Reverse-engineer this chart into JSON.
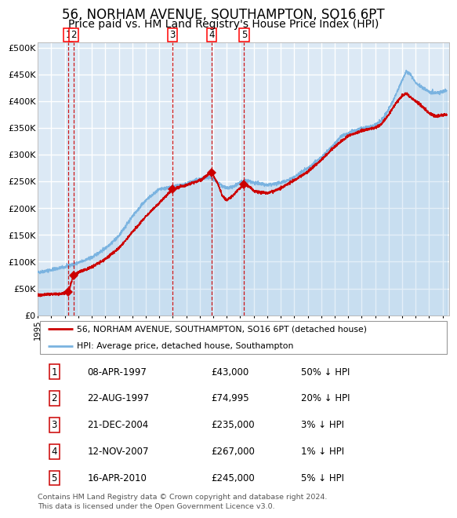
{
  "title": "56, NORHAM AVENUE, SOUTHAMPTON, SO16 6PT",
  "subtitle": "Price paid vs. HM Land Registry's House Price Index (HPI)",
  "title_fontsize": 12,
  "subtitle_fontsize": 10,
  "background_color": "#dce9f5",
  "plot_bg_color": "#dce9f5",
  "hpi_color": "#7ab3e0",
  "price_color": "#cc0000",
  "marker_color": "#cc0000",
  "vline_color": "#cc0000",
  "grid_color": "#ffffff",
  "transactions": [
    {
      "label": "1",
      "date_x": 1997.27,
      "price": 43000,
      "date_str": "08-APR-1997",
      "pct": "50% ↓ HPI"
    },
    {
      "label": "2",
      "date_x": 1997.64,
      "price": 74995,
      "date_str": "22-AUG-1997",
      "pct": "20% ↓ HPI"
    },
    {
      "label": "3",
      "date_x": 2004.97,
      "price": 235000,
      "date_str": "21-DEC-2004",
      "pct": "3% ↓ HPI"
    },
    {
      "label": "4",
      "date_x": 2007.87,
      "price": 267000,
      "date_str": "12-NOV-2007",
      "pct": "1% ↓ HPI"
    },
    {
      "label": "5",
      "date_x": 2010.29,
      "price": 245000,
      "date_str": "16-APR-2010",
      "pct": "5% ↓ HPI"
    }
  ],
  "ylim": [
    0,
    510000
  ],
  "xlim": [
    1995.0,
    2025.5
  ],
  "yticks": [
    0,
    50000,
    100000,
    150000,
    200000,
    250000,
    300000,
    350000,
    400000,
    450000,
    500000
  ],
  "ytick_labels": [
    "£0",
    "£50K",
    "£100K",
    "£150K",
    "£200K",
    "£250K",
    "£300K",
    "£350K",
    "£400K",
    "£450K",
    "£500K"
  ],
  "legend_price_label": "56, NORHAM AVENUE, SOUTHAMPTON, SO16 6PT (detached house)",
  "legend_hpi_label": "HPI: Average price, detached house, Southampton",
  "table_rows": [
    [
      "1",
      "08-APR-1997",
      "£43,000",
      "50% ↓ HPI"
    ],
    [
      "2",
      "22-AUG-1997",
      "£74,995",
      "20% ↓ HPI"
    ],
    [
      "3",
      "21-DEC-2004",
      "£235,000",
      "3% ↓ HPI"
    ],
    [
      "4",
      "12-NOV-2007",
      "£267,000",
      "1% ↓ HPI"
    ],
    [
      "5",
      "16-APR-2010",
      "£245,000",
      "5% ↓ HPI"
    ]
  ],
  "footer": "Contains HM Land Registry data © Crown copyright and database right 2024.\nThis data is licensed under the Open Government Licence v3.0."
}
